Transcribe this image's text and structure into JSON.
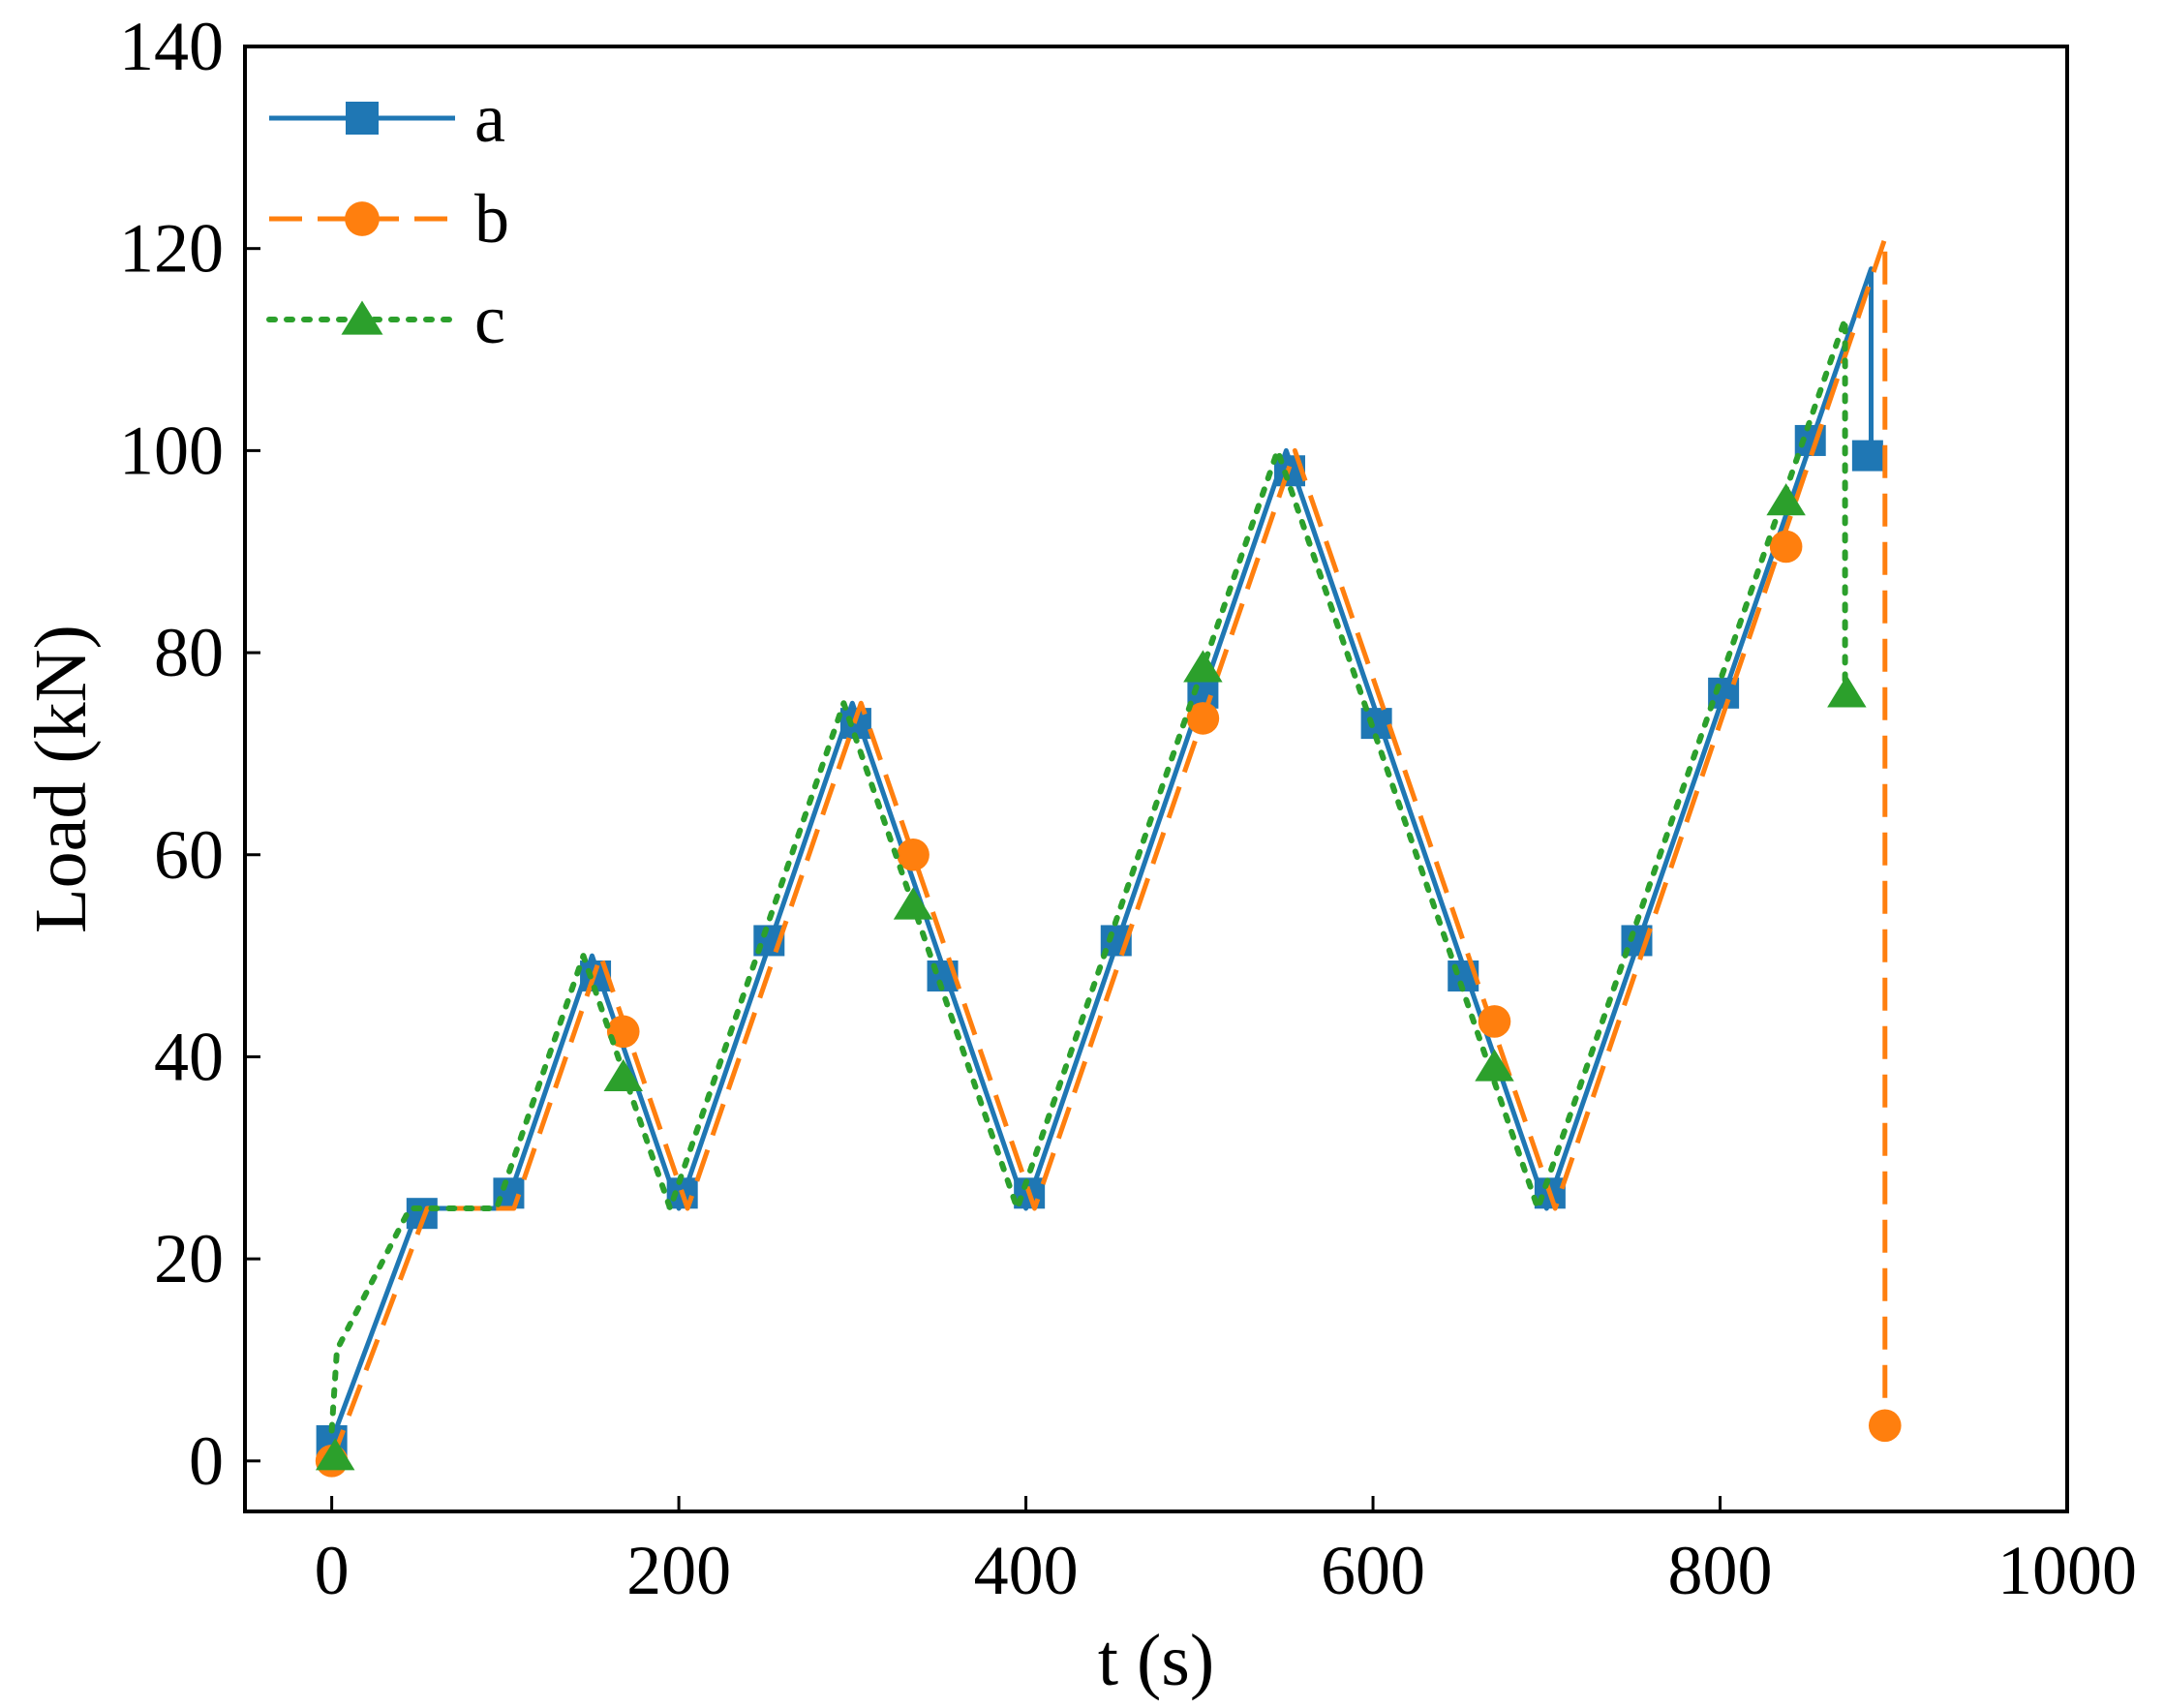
{
  "chart_data": {
    "type": "line",
    "xlabel": "t (s)",
    "ylabel": "Load (kN)",
    "xlim": [
      -50,
      1000
    ],
    "ylim": [
      -5,
      140
    ],
    "xticks": [
      0,
      200,
      400,
      600,
      800,
      1000
    ],
    "yticks": [
      0,
      20,
      40,
      60,
      80,
      100,
      120,
      140
    ],
    "grid": false,
    "legend": "top-left",
    "series": [
      {
        "name": "a",
        "color": "#1f77b4",
        "style": "solid",
        "marker": "square",
        "points": [
          [
            0,
            2
          ],
          [
            50,
            25
          ],
          [
            100,
            25
          ],
          [
            150,
            50
          ],
          [
            200,
            25
          ],
          [
            300,
            75
          ],
          [
            400,
            25
          ],
          [
            550,
            100
          ],
          [
            700,
            25
          ],
          [
            887,
            118
          ],
          [
            887,
            99
          ]
        ],
        "markers": [
          [
            0,
            2
          ],
          [
            52,
            24.5
          ],
          [
            102,
            26.5
          ],
          [
            152,
            48
          ],
          [
            202,
            26.5
          ],
          [
            252,
            51.5
          ],
          [
            302,
            73
          ],
          [
            352,
            48
          ],
          [
            402,
            26.5
          ],
          [
            452,
            51.5
          ],
          [
            502,
            76
          ],
          [
            552,
            98
          ],
          [
            602,
            73
          ],
          [
            652,
            48
          ],
          [
            702,
            26.5
          ],
          [
            752,
            51.5
          ],
          [
            802,
            76
          ],
          [
            852,
            101
          ],
          [
            885,
            99.5
          ]
        ]
      },
      {
        "name": "b",
        "color": "#ff7f0e",
        "style": "dashed",
        "marker": "circle",
        "points": [
          [
            0,
            0
          ],
          [
            55,
            25
          ],
          [
            105,
            25
          ],
          [
            155,
            50
          ],
          [
            205,
            25
          ],
          [
            305,
            75
          ],
          [
            405,
            25
          ],
          [
            555,
            100
          ],
          [
            705,
            25
          ],
          [
            895,
            121
          ],
          [
            895,
            3
          ]
        ],
        "markers": [
          [
            0,
            0
          ],
          [
            168,
            42.5
          ],
          [
            335,
            60
          ],
          [
            502,
            73.5
          ],
          [
            670,
            43.5
          ],
          [
            838,
            90.5
          ],
          [
            895,
            3.5
          ]
        ]
      },
      {
        "name": "c",
        "color": "#2ca02c",
        "style": "dotted",
        "marker": "triangle",
        "points": [
          [
            0,
            3
          ],
          [
            3,
            11
          ],
          [
            45,
            25
          ],
          [
            95,
            25
          ],
          [
            145,
            50
          ],
          [
            195,
            25
          ],
          [
            295,
            75
          ],
          [
            395,
            25
          ],
          [
            545,
            100
          ],
          [
            695,
            25
          ],
          [
            872,
            113
          ],
          [
            872,
            76
          ]
        ],
        "markers": [
          [
            2,
            0.5
          ],
          [
            168,
            38
          ],
          [
            335,
            55
          ],
          [
            502,
            78.5
          ],
          [
            670,
            39
          ],
          [
            838,
            95
          ],
          [
            873,
            76
          ]
        ]
      }
    ]
  }
}
